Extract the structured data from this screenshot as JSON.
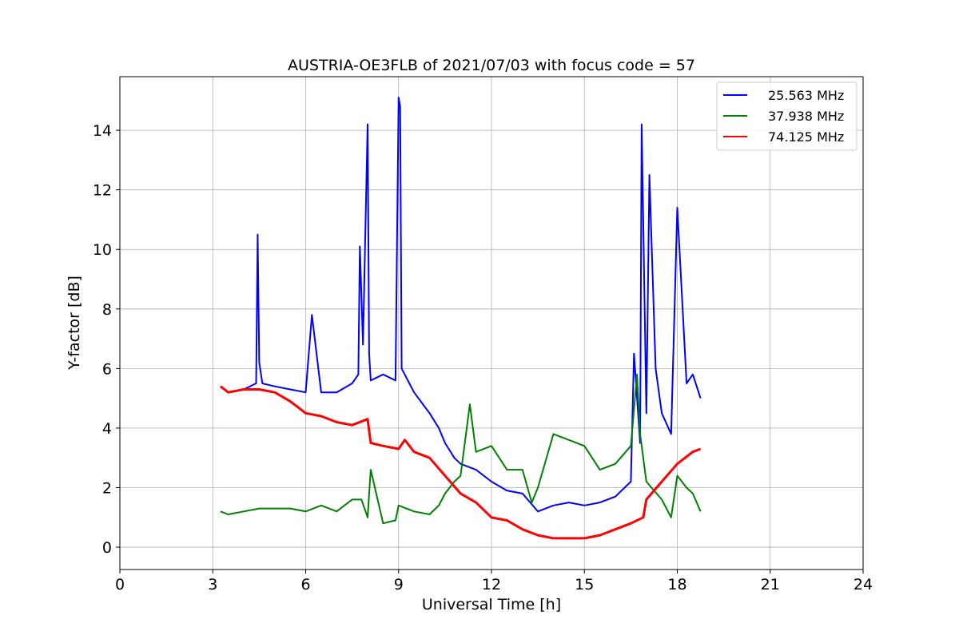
{
  "chart_data": {
    "type": "line",
    "title": "AUSTRIA-OE3FLB of 2021/07/03 with focus code = 57",
    "xlabel": "Universal Time [h]",
    "ylabel": "Y-factor [dB]",
    "xlim": [
      0,
      24
    ],
    "ylim": [
      -0.75,
      15.8
    ],
    "xticks": [
      0,
      3,
      6,
      9,
      12,
      15,
      18,
      21,
      24
    ],
    "yticks": [
      0,
      2,
      4,
      6,
      8,
      10,
      12,
      14
    ],
    "grid": true,
    "legend_position": "top-right",
    "series": [
      {
        "name": "25.563 MHz",
        "color": "#0000ff",
        "x": [
          3.25,
          3.5,
          4.0,
          4.4,
          4.45,
          4.5,
          4.6,
          5.0,
          5.5,
          6.0,
          6.2,
          6.5,
          7.0,
          7.5,
          7.7,
          7.75,
          7.85,
          8.0,
          8.05,
          8.1,
          8.5,
          8.9,
          9.0,
          9.05,
          9.1,
          9.5,
          10.0,
          10.3,
          10.5,
          10.8,
          11.0,
          11.5,
          12.0,
          12.5,
          13.0,
          13.5,
          14.0,
          14.5,
          15.0,
          15.5,
          16.0,
          16.5,
          16.6,
          16.8,
          16.85,
          17.0,
          17.1,
          17.3,
          17.5,
          17.8,
          18.0,
          18.3,
          18.5,
          18.75
        ],
        "values": [
          5.4,
          5.2,
          5.3,
          5.5,
          10.5,
          6.2,
          5.5,
          5.4,
          5.3,
          5.2,
          7.8,
          5.2,
          5.2,
          5.5,
          5.8,
          10.1,
          6.8,
          14.2,
          6.5,
          5.6,
          5.8,
          5.6,
          15.1,
          14.8,
          6.0,
          5.2,
          4.5,
          4.0,
          3.5,
          3.0,
          2.8,
          2.6,
          2.2,
          1.9,
          1.8,
          1.2,
          1.4,
          1.5,
          1.4,
          1.5,
          1.7,
          2.2,
          6.5,
          3.5,
          14.2,
          4.5,
          12.5,
          6.0,
          4.5,
          3.8,
          11.4,
          5.5,
          5.8,
          5.0
        ]
      },
      {
        "name": "37.938 MHz",
        "color": "#008000",
        "x": [
          3.25,
          3.5,
          4.0,
          4.5,
          5.0,
          5.5,
          6.0,
          6.5,
          7.0,
          7.5,
          7.8,
          8.0,
          8.1,
          8.5,
          8.9,
          9.0,
          9.5,
          10.0,
          10.3,
          10.5,
          10.8,
          11.0,
          11.3,
          11.5,
          12.0,
          12.5,
          13.0,
          13.3,
          13.5,
          14.0,
          14.5,
          15.0,
          15.5,
          16.0,
          16.5,
          16.7,
          16.8,
          17.0,
          17.5,
          17.8,
          18.0,
          18.3,
          18.5,
          18.75
        ],
        "values": [
          1.2,
          1.1,
          1.2,
          1.3,
          1.3,
          1.3,
          1.2,
          1.4,
          1.2,
          1.6,
          1.6,
          1.0,
          2.6,
          0.8,
          0.9,
          1.4,
          1.2,
          1.1,
          1.4,
          1.8,
          2.2,
          2.4,
          4.8,
          3.2,
          3.4,
          2.6,
          2.6,
          1.5,
          2.0,
          3.8,
          3.6,
          3.4,
          2.6,
          2.8,
          3.4,
          5.8,
          3.8,
          2.2,
          1.6,
          1.0,
          2.4,
          2.0,
          1.8,
          1.2
        ]
      },
      {
        "name": "74.125 MHz",
        "color": "#ff0000",
        "x": [
          3.25,
          3.5,
          4.0,
          4.5,
          5.0,
          5.5,
          6.0,
          6.5,
          7.0,
          7.5,
          8.0,
          8.1,
          8.5,
          9.0,
          9.2,
          9.5,
          10.0,
          10.5,
          11.0,
          11.5,
          12.0,
          12.5,
          13.0,
          13.5,
          14.0,
          14.5,
          15.0,
          15.5,
          16.0,
          16.5,
          16.9,
          17.0,
          17.5,
          18.0,
          18.5,
          18.75
        ],
        "values": [
          5.4,
          5.2,
          5.3,
          5.3,
          5.2,
          4.9,
          4.5,
          4.4,
          4.2,
          4.1,
          4.3,
          3.5,
          3.4,
          3.3,
          3.6,
          3.2,
          3.0,
          2.4,
          1.8,
          1.5,
          1.0,
          0.9,
          0.6,
          0.4,
          0.3,
          0.3,
          0.3,
          0.4,
          0.6,
          0.8,
          1.0,
          1.6,
          2.2,
          2.8,
          3.2,
          3.3
        ]
      }
    ]
  }
}
